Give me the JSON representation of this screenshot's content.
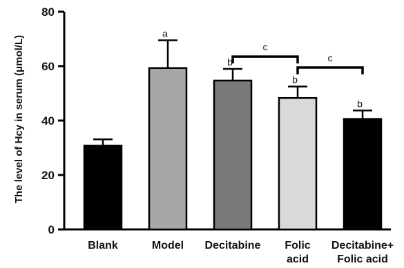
{
  "chart_data": {
    "type": "bar",
    "title": "",
    "xlabel": "",
    "ylabel": "The level of Hcy in serum (μmol/L)",
    "ylim": [
      0,
      80
    ],
    "yticks": [
      0,
      20,
      40,
      60,
      80
    ],
    "grid": false,
    "categories": [
      [
        "Blank"
      ],
      [
        "Model"
      ],
      [
        "Decitabine"
      ],
      [
        "Folic",
        "acid"
      ],
      [
        "Decitabine+",
        "Folic acid"
      ]
    ],
    "values": [
      30.8,
      59.3,
      54.7,
      48.3,
      40.6
    ],
    "errors": [
      2.3,
      10.2,
      4.3,
      4.2,
      3.1
    ],
    "colors": [
      "#000000",
      "#a6a6a6",
      "#7a7a7a",
      "#d9d9d9",
      "#000000"
    ],
    "bar_labels": [
      "",
      "a",
      "b",
      "b",
      "b"
    ],
    "brackets": [
      {
        "from": 2,
        "to": 3,
        "label": "c",
        "y": 63.5
      },
      {
        "from": 3,
        "to": 4,
        "label": "c",
        "y": 59.5
      }
    ]
  }
}
